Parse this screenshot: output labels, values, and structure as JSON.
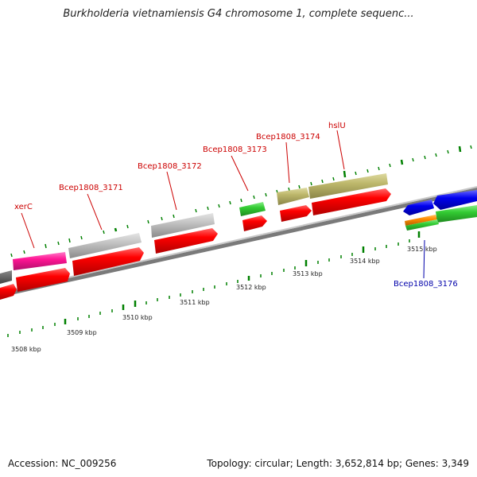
{
  "title": "Burkholderia vietnamiensis G4 chromosome 1, complete sequenc...",
  "footer": {
    "accession": "Accession: NC_009256",
    "summary": "Topology: circular; Length: 3,652,814 bp; Genes: 3,349"
  },
  "colors": {
    "cds": "#ff0000",
    "gene_gray": "#c0c0c0",
    "gene_pink": "#ff1493",
    "gene_green": "#33cc33",
    "gene_khaki": "#bdb76b",
    "gene_blue": "#0000ee",
    "gene_orange": "#ff8c00",
    "backbone": "#808080",
    "ticks": "#008000",
    "label_red": "#cc0000",
    "label_blue": "#0000aa"
  },
  "gene_labels": [
    {
      "id": "xerc",
      "text": "xerC"
    },
    {
      "id": "b3171",
      "text": "Bcep1808_3171"
    },
    {
      "id": "b3172",
      "text": "Bcep1808_3172"
    },
    {
      "id": "b3173",
      "text": "Bcep1808_3173"
    },
    {
      "id": "b3174",
      "text": "Bcep1808_3174"
    },
    {
      "id": "hslu",
      "text": "hslU"
    },
    {
      "id": "b3176",
      "text": "Bcep1808_3176"
    }
  ],
  "kbp_labels": [
    "3508 kbp",
    "3509 kbp",
    "3510 kbp",
    "3511 kbp",
    "3512 kbp",
    "3513 kbp",
    "3514 kbp",
    "3515 kbp"
  ]
}
